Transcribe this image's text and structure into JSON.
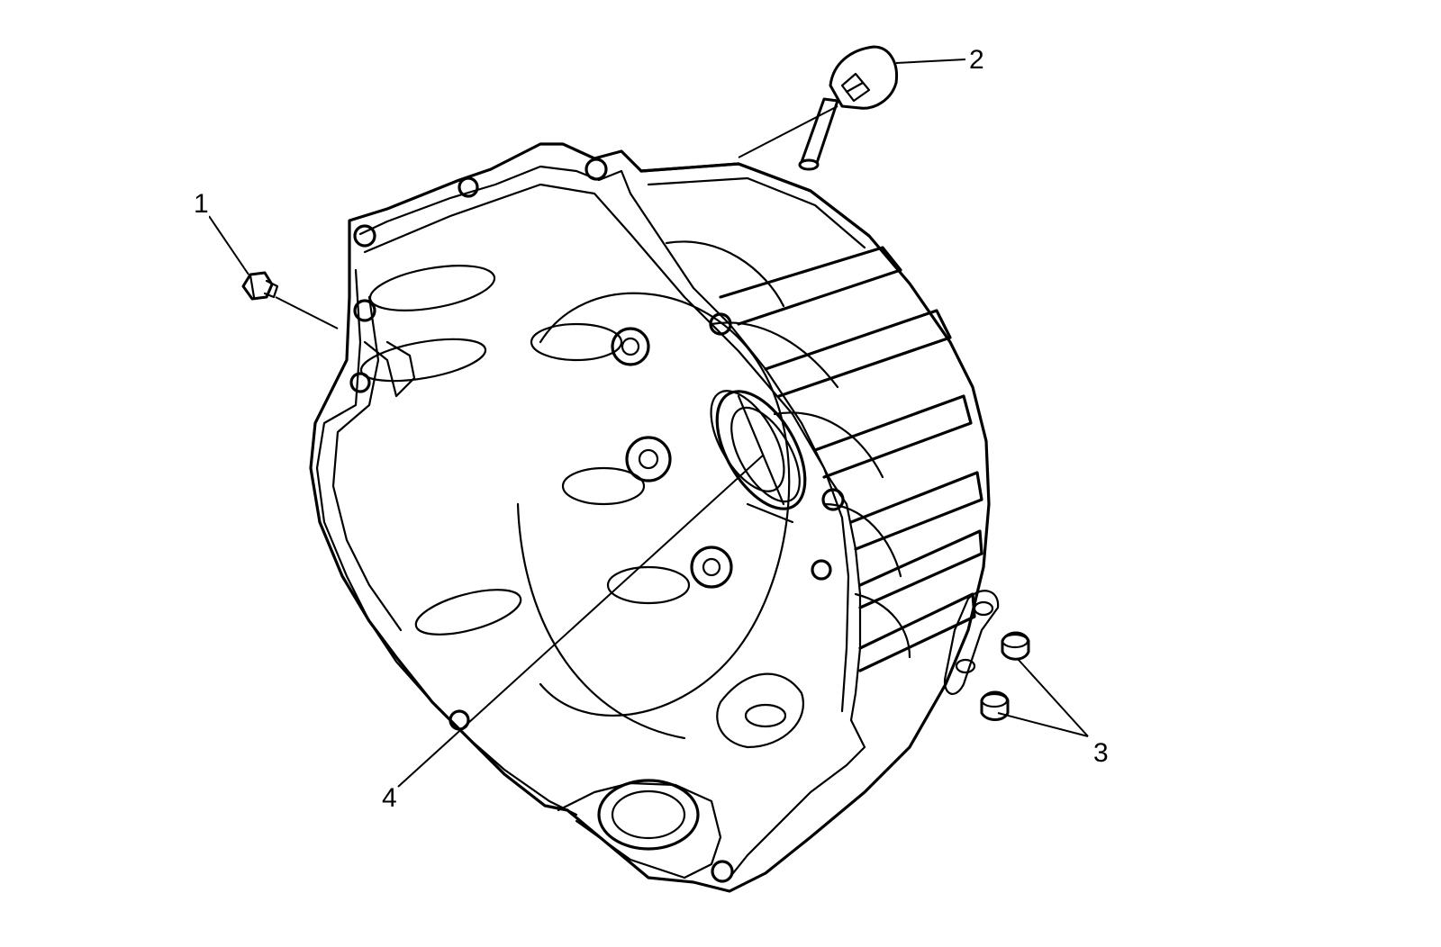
{
  "figure": {
    "callouts": [
      {
        "id": "1",
        "label": "1"
      },
      {
        "id": "2",
        "label": "2"
      },
      {
        "id": "3",
        "label": "3"
      },
      {
        "id": "4",
        "label": "4"
      }
    ]
  }
}
